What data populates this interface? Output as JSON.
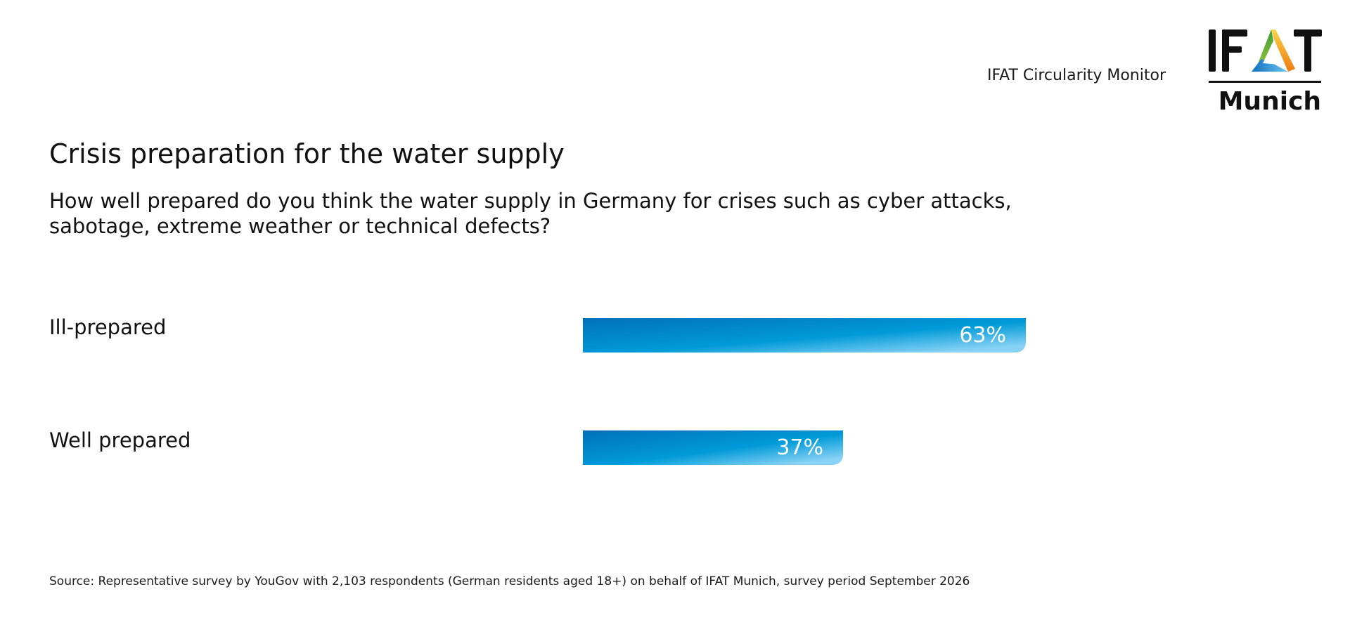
{
  "header": {
    "monitor_label": "IFAT Circularity Monitor",
    "logo": {
      "name": "IFAT Munich",
      "wordmark_top": "IFAT",
      "wordmark_bottom": "Munich",
      "colors": {
        "green": "#5bab33",
        "orange": "#f39a1e",
        "blue": "#1f8fd6",
        "text": "#111111"
      }
    }
  },
  "title": "Crisis preparation for the water supply",
  "question_lines": [
    "How well prepared do you think the water supply in Germany for crises such as cyber attacks,",
    "sabotage, extreme weather or technical defects?"
  ],
  "chart_data": {
    "type": "bar",
    "orientation": "horizontal",
    "title": "Crisis preparation for the water supply",
    "subtitle": "How well prepared do you think the water supply in Germany for crises such as cyber attacks, sabotage, extreme weather or technical defects?",
    "categories": [
      "Ill-prepared",
      "Well prepared"
    ],
    "values": [
      63,
      37
    ],
    "value_labels": [
      "63%",
      "37%"
    ],
    "unit": "%",
    "xlim": [
      0,
      100
    ],
    "xlabel": "",
    "ylabel": "",
    "grid": false,
    "legend": "none",
    "colors": {
      "gradient_start": "#0071b9",
      "gradient_mid": "#009ad8",
      "gradient_end": "#88d2f5",
      "label": "#ffffff"
    }
  },
  "source": "Source: Representative survey by YouGov with 2,103 respondents (German residents aged 18+) on behalf of IFAT Munich, survey period September 2026"
}
